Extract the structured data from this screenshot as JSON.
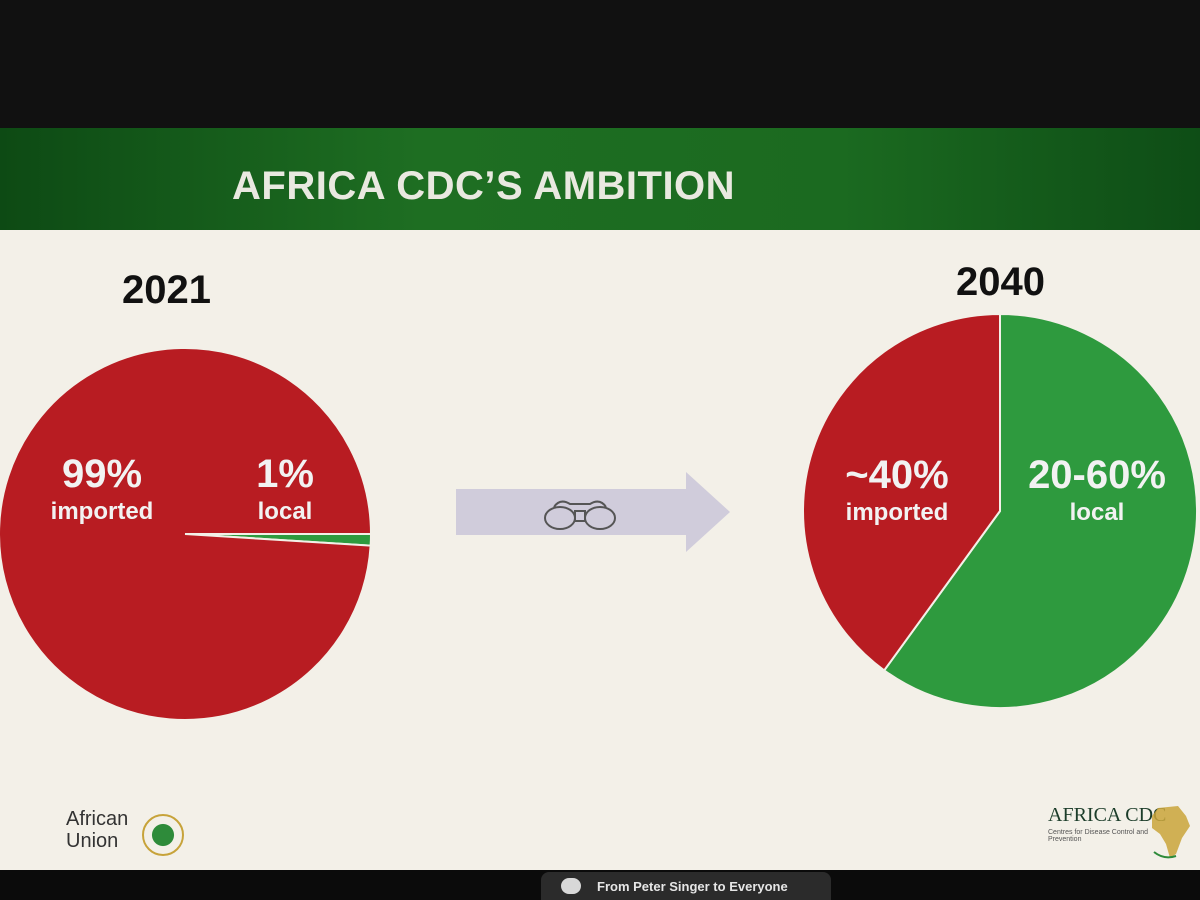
{
  "slide": {
    "title": "AFRICA CDC’S AMBITION",
    "left_year": "2021",
    "right_year": "2040",
    "left_pie_labels": {
      "imported_pct": "99%",
      "imported_word": "imported",
      "local_pct": "1%",
      "local_word": "local"
    },
    "right_pie_labels": {
      "imported_pct": "~40%",
      "imported_word": "imported",
      "local_pct": "20-60%",
      "local_word": "local"
    },
    "logos": {
      "african_union": [
        "African",
        "Union"
      ],
      "africa_cdc": "AFRICA CDC",
      "africa_cdc_subtitle": "Centres for Disease Control and Prevention"
    },
    "colors": {
      "imported": "#b81c22",
      "local": "#2e9a3e",
      "header_green": "#1e6e22"
    }
  },
  "chat": {
    "notification": "From Peter Singer to Everyone"
  },
  "chart_data": [
    {
      "type": "pie",
      "title": "2021",
      "categories": [
        "imported",
        "local"
      ],
      "values": [
        99,
        1
      ]
    },
    {
      "type": "pie",
      "title": "2040",
      "categories": [
        "imported",
        "local"
      ],
      "values": [
        40,
        60
      ]
    }
  ]
}
